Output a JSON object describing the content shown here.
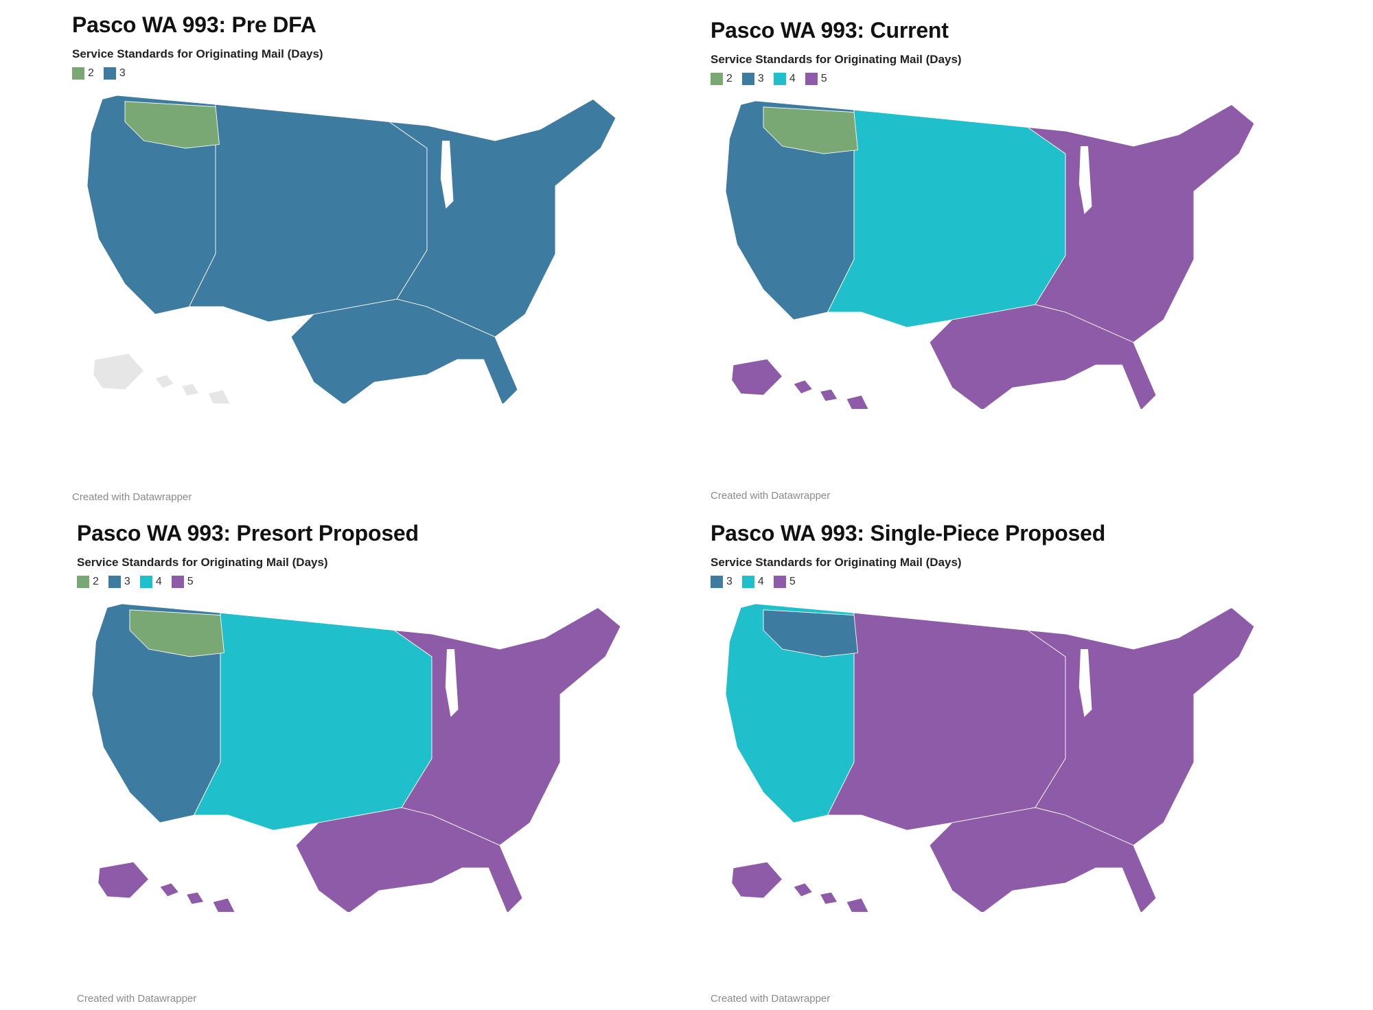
{
  "panels": [
    {
      "title": "Pasco WA 993: Pre DFA",
      "legend_title": "Service Standards for Originating Mail (Days)",
      "legend": [
        {
          "label": "2",
          "color": "#7aa874"
        },
        {
          "label": "3",
          "color": "#3e7ba0"
        }
      ],
      "regions": {
        "west": "3",
        "wa": "2",
        "central": "3",
        "east": "3",
        "south": "3",
        "hawaii": "none"
      },
      "credit": "Created with Datawrapper"
    },
    {
      "title": "Pasco WA 993: Current",
      "legend_title": "Service Standards for Originating Mail (Days)",
      "legend": [
        {
          "label": "2",
          "color": "#7aa874"
        },
        {
          "label": "3",
          "color": "#3e7ba0"
        },
        {
          "label": "4",
          "color": "#1fbfcb"
        },
        {
          "label": "5",
          "color": "#8e5ba8"
        }
      ],
      "regions": {
        "west": "3",
        "wa": "2",
        "central": "4",
        "east": "5",
        "south": "5",
        "hawaii": "5"
      },
      "credit": "Created with Datawrapper"
    },
    {
      "title": "Pasco WA 993: Presort Proposed",
      "legend_title": "Service Standards for Originating Mail (Days)",
      "legend": [
        {
          "label": "2",
          "color": "#7aa874"
        },
        {
          "label": "3",
          "color": "#3e7ba0"
        },
        {
          "label": "4",
          "color": "#1fbfcb"
        },
        {
          "label": "5",
          "color": "#8e5ba8"
        }
      ],
      "regions": {
        "west": "3",
        "wa": "2",
        "central": "4",
        "east": "5",
        "south": "5",
        "hawaii": "5"
      },
      "credit": "Created with Datawrapper"
    },
    {
      "title": "Pasco WA 993: Single-Piece Proposed",
      "legend_title": "Service Standards for Originating Mail (Days)",
      "legend": [
        {
          "label": "3",
          "color": "#3e7ba0"
        },
        {
          "label": "4",
          "color": "#1fbfcb"
        },
        {
          "label": "5",
          "color": "#8e5ba8"
        }
      ],
      "regions": {
        "west": "4",
        "wa": "3",
        "central": "5",
        "east": "5",
        "south": "5",
        "hawaii": "5"
      },
      "credit": "Created with Datawrapper"
    }
  ],
  "colors": {
    "2": "#7aa874",
    "3": "#3e7ba0",
    "4": "#1fbfcb",
    "5": "#8e5ba8",
    "none": "#e6e6e6"
  }
}
